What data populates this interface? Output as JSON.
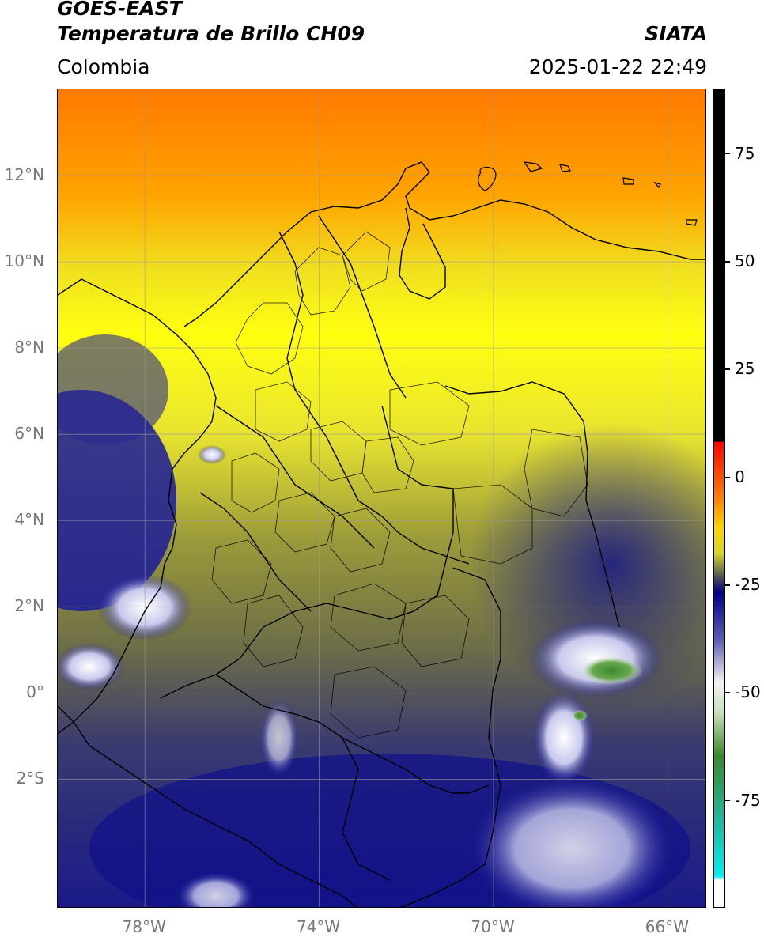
{
  "header": {
    "line1": "GOES-EAST",
    "line2": "Temperatura de Brillo CH09",
    "brand": "SIATA",
    "region": "Colombia",
    "datetime": "2025-01-22 22:49"
  },
  "map": {
    "lon_range": [
      -80,
      -65.1
    ],
    "lat_range": [
      -5,
      14
    ],
    "lat_ticks": [
      {
        "value": 12,
        "label": "12°N"
      },
      {
        "value": 10,
        "label": "10°N"
      },
      {
        "value": 8,
        "label": "8°N"
      },
      {
        "value": 6,
        "label": "6°N"
      },
      {
        "value": 4,
        "label": "4°N"
      },
      {
        "value": 2,
        "label": "2°N"
      },
      {
        "value": 0,
        "label": "0°"
      },
      {
        "value": -2,
        "label": "2°S"
      }
    ],
    "lon_ticks": [
      {
        "value": -78,
        "label": "78°W"
      },
      {
        "value": -74,
        "label": "74°W"
      },
      {
        "value": -70,
        "label": "70°W"
      },
      {
        "value": -66,
        "label": "66°W"
      }
    ]
  },
  "colorbar": {
    "range": [
      -100,
      90
    ],
    "ticks": [
      {
        "value": 75,
        "label": "75"
      },
      {
        "value": 50,
        "label": "50"
      },
      {
        "value": 25,
        "label": "25"
      },
      {
        "value": 0,
        "label": "0"
      },
      {
        "value": -25,
        "label": "-25"
      },
      {
        "value": -50,
        "label": "-50"
      },
      {
        "value": -75,
        "label": "-75"
      }
    ],
    "stops": [
      {
        "value": 90,
        "color": "#000000"
      },
      {
        "value": 8.1,
        "color": "#000000"
      },
      {
        "value": 8,
        "color": "#ff0000"
      },
      {
        "value": -5,
        "color": "#ff7f00"
      },
      {
        "value": -12,
        "color": "#ffd400"
      },
      {
        "value": -18,
        "color": "#d6d428"
      },
      {
        "value": -23,
        "color": "#5b5b52"
      },
      {
        "value": -27,
        "color": "#00008c"
      },
      {
        "value": -38,
        "color": "#5c5cb6"
      },
      {
        "value": -48,
        "color": "#f2f2f2"
      },
      {
        "value": -55,
        "color": "#c6e0b8"
      },
      {
        "value": -65,
        "color": "#3a8a2a"
      },
      {
        "value": -80,
        "color": "#20b8a0"
      },
      {
        "value": -93,
        "color": "#00f0f0"
      },
      {
        "value": -94,
        "color": "#ffffff"
      },
      {
        "value": -100,
        "color": "#ffffff"
      }
    ]
  }
}
